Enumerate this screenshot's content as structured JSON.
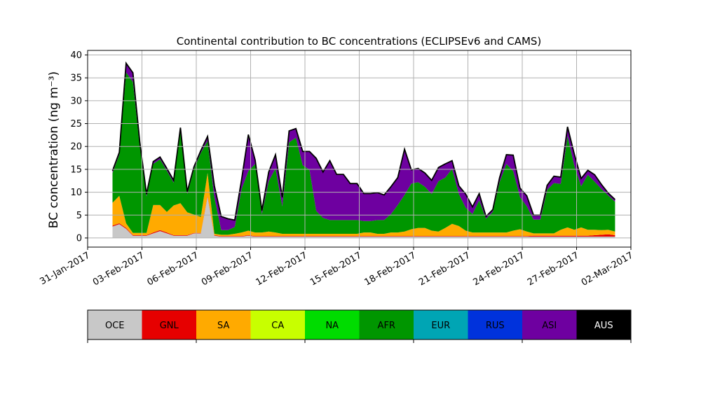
{
  "chart_data": {
    "type": "area",
    "stacked": true,
    "title": "Continental contribution to BC concentrations (ECLIPSEv6 and CAMS)",
    "ylabel": "BC concentration (ng m⁻³)",
    "ylim": [
      -2,
      41
    ],
    "yticks": [
      0,
      5,
      10,
      15,
      20,
      25,
      30,
      35,
      40
    ],
    "xlim": [
      "2017-01-31",
      "2017-03-02"
    ],
    "xticks": [
      "2017-01-31",
      "2017-02-03",
      "2017-02-06",
      "2017-02-09",
      "2017-02-12",
      "2017-02-15",
      "2017-02-18",
      "2017-02-21",
      "2017-02-24",
      "2017-02-27",
      "2017-03-02"
    ],
    "xtick_labels": [
      "31-Jan-2017",
      "03-Feb-2017",
      "06-Feb-2017",
      "09-Feb-2017",
      "12-Feb-2017",
      "15-Feb-2017",
      "18-Feb-2017",
      "21-Feb-2017",
      "24-Feb-2017",
      "27-Feb-2017",
      "02-Mar-2017"
    ],
    "grid": true,
    "legend_position": "colorbar-below",
    "x": [
      "2017-02-01 09:00",
      "2017-02-01 18:00",
      "2017-02-02 03:00",
      "2017-02-02 12:00",
      "2017-02-02 21:00",
      "2017-02-03 06:00",
      "2017-02-03 15:00",
      "2017-02-04 00:00",
      "2017-02-04 09:00",
      "2017-02-04 18:00",
      "2017-02-05 03:00",
      "2017-02-05 12:00",
      "2017-02-05 21:00",
      "2017-02-06 06:00",
      "2017-02-06 15:00",
      "2017-02-07 00:00",
      "2017-02-07 09:00",
      "2017-02-07 18:00",
      "2017-02-08 03:00",
      "2017-02-08 12:00",
      "2017-02-08 21:00",
      "2017-02-09 06:00",
      "2017-02-09 15:00",
      "2017-02-10 00:00",
      "2017-02-10 09:00",
      "2017-02-10 18:00",
      "2017-02-11 03:00",
      "2017-02-11 12:00",
      "2017-02-11 21:00",
      "2017-02-12 06:00",
      "2017-02-12 15:00",
      "2017-02-13 00:00",
      "2017-02-13 09:00",
      "2017-02-13 18:00",
      "2017-02-14 03:00",
      "2017-02-14 12:00",
      "2017-02-14 21:00",
      "2017-02-15 06:00",
      "2017-02-15 15:00",
      "2017-02-16 00:00",
      "2017-02-16 09:00",
      "2017-02-16 18:00",
      "2017-02-17 03:00",
      "2017-02-17 12:00",
      "2017-02-17 21:00",
      "2017-02-18 06:00",
      "2017-02-18 15:00",
      "2017-02-19 00:00",
      "2017-02-19 09:00",
      "2017-02-19 18:00",
      "2017-02-20 03:00",
      "2017-02-20 12:00",
      "2017-02-20 21:00",
      "2017-02-21 06:00",
      "2017-02-21 15:00",
      "2017-02-22 00:00",
      "2017-02-22 09:00",
      "2017-02-22 18:00",
      "2017-02-23 03:00",
      "2017-02-23 12:00",
      "2017-02-23 21:00",
      "2017-02-24 06:00",
      "2017-02-24 15:00",
      "2017-02-25 00:00",
      "2017-02-25 09:00",
      "2017-02-25 18:00",
      "2017-02-26 03:00",
      "2017-02-26 12:00",
      "2017-02-26 21:00",
      "2017-02-27 06:00",
      "2017-02-27 15:00",
      "2017-02-28 00:00",
      "2017-02-28 09:00",
      "2017-02-28 18:00",
      "2017-03-01 03:00"
    ],
    "series": [
      {
        "name": "OCE",
        "color": "#c8c8c8",
        "values": [
          2.5,
          3,
          2,
          0.5,
          0.5,
          0.5,
          1,
          1.5,
          1,
          0.5,
          0.5,
          0.5,
          1,
          1,
          9,
          0.5,
          0.3,
          0.3,
          0.3,
          0.3,
          0.5,
          0.3,
          0.3,
          0.3,
          0.3,
          0.3,
          0.3,
          0.3,
          0.3,
          0.3,
          0.3,
          0.3,
          0.3,
          0.3,
          0.3,
          0.3,
          0.3,
          0.3,
          0.3,
          0.3,
          0.3,
          0.3,
          0.3,
          0.3,
          0.3,
          0.3,
          0.3,
          0.3,
          0.3,
          0.3,
          0.3,
          0.3,
          0.3,
          0.3,
          0.3,
          0.3,
          0.3,
          0.3,
          0.3,
          0.3,
          0.3,
          0.3,
          0.3,
          0.3,
          0.3,
          0.3,
          0.3,
          0.3,
          0.3,
          0.3,
          0.3,
          0.3,
          0.3,
          0.3,
          0.3
        ]
      },
      {
        "name": "GNL",
        "color": "#e60000",
        "values": [
          0.2,
          0.2,
          0.2,
          0.1,
          0.1,
          0.1,
          0.2,
          0.2,
          0.2,
          0.1,
          0.1,
          0.1,
          0.1,
          0.1,
          0.2,
          0.1,
          0.1,
          0.1,
          0.1,
          0.1,
          0.1,
          0.1,
          0.1,
          0.1,
          0.1,
          0.1,
          0.1,
          0.1,
          0.1,
          0.1,
          0.1,
          0.1,
          0.1,
          0.1,
          0.1,
          0.1,
          0.1,
          0.1,
          0.1,
          0.1,
          0.1,
          0.1,
          0.1,
          0.1,
          0.1,
          0.1,
          0.1,
          0.1,
          0.1,
          0.1,
          0.1,
          0.1,
          0.1,
          0.1,
          0.1,
          0.1,
          0.1,
          0.1,
          0.1,
          0.1,
          0.1,
          0.1,
          0.2,
          0.2,
          0.2,
          0.2,
          0.2,
          0.2,
          0.2,
          0.2,
          0.2,
          0.3,
          0.4,
          0.5,
          0.3
        ]
      },
      {
        "name": "SA",
        "color": "#ffaa00",
        "values": [
          5,
          6,
          1,
          0.5,
          0.5,
          0.5,
          6,
          5.5,
          4.5,
          6.5,
          7,
          5,
          4,
          3.5,
          5,
          0.3,
          0.3,
          0.3,
          0.5,
          0.8,
          1,
          0.8,
          0.8,
          1,
          0.8,
          0.5,
          0.5,
          0.5,
          0.5,
          0.5,
          0.5,
          0.5,
          0.5,
          0.5,
          0.5,
          0.5,
          0.5,
          0.8,
          0.8,
          0.5,
          0.5,
          0.8,
          0.8,
          1,
          1.5,
          1.8,
          1.8,
          1.2,
          1,
          1.8,
          2.7,
          2.2,
          1.2,
          0.8,
          0.8,
          0.8,
          0.8,
          0.8,
          0.8,
          1.2,
          1.5,
          1,
          0.5,
          0.5,
          0.5,
          0.5,
          1.3,
          1.8,
          1.3,
          1.8,
          1.3,
          1.2,
          1,
          1,
          0.8
        ]
      },
      {
        "name": "CA",
        "color": "#c8ff00",
        "values": [
          0,
          0,
          0,
          0,
          0,
          0,
          0,
          0,
          0,
          0,
          0,
          0,
          0,
          0,
          0,
          0,
          0,
          0,
          0,
          0,
          0,
          0,
          0,
          0,
          0,
          0,
          0,
          0,
          0,
          0,
          0,
          0,
          0,
          0,
          0,
          0,
          0,
          0,
          0,
          0,
          0,
          0,
          0,
          0,
          0,
          0,
          0,
          0,
          0,
          0,
          0,
          0,
          0,
          0,
          0,
          0,
          0,
          0,
          0,
          0,
          0,
          0,
          0,
          0,
          0,
          0,
          0,
          0,
          0,
          0,
          0,
          0,
          0,
          0,
          0
        ]
      },
      {
        "name": "NA",
        "color": "#00dc00",
        "values": [
          0,
          0,
          0,
          0,
          0,
          0,
          0,
          0,
          0,
          0,
          0,
          0,
          0,
          0,
          0,
          0,
          0,
          0,
          0,
          0,
          0,
          0,
          0,
          0,
          0,
          0,
          0,
          0,
          0,
          0,
          0,
          0,
          0,
          0,
          0,
          0,
          0,
          0,
          0,
          0,
          0,
          0,
          0,
          0,
          0,
          0,
          0,
          0,
          0,
          0,
          0,
          0,
          0,
          0,
          0,
          0,
          0,
          0,
          0,
          0,
          0,
          0,
          0,
          0,
          0,
          0,
          0,
          0,
          0,
          0,
          0,
          0,
          0,
          0,
          0
        ]
      },
      {
        "name": "AFR",
        "color": "#009600",
        "values": [
          6.5,
          9,
          33,
          33,
          19,
          8,
          9,
          10,
          9,
          5,
          16,
          4,
          10,
          14,
          7,
          8,
          1,
          1,
          1.5,
          9.5,
          13,
          15,
          4,
          11,
          14,
          6,
          20,
          21,
          15,
          14,
          5,
          3.5,
          3,
          3,
          3,
          3,
          3,
          2.5,
          2.5,
          3,
          3,
          4,
          6,
          8,
          10,
          10,
          9,
          8,
          11,
          11,
          12,
          7,
          5,
          4,
          7,
          3,
          4.5,
          11,
          15,
          13,
          7,
          5.5,
          3,
          3,
          9.5,
          11,
          10,
          20,
          14,
          9,
          12,
          10.5,
          9,
          7.5,
          6.5
        ]
      },
      {
        "name": "EUR",
        "color": "#00a5b4",
        "values": [
          0,
          0,
          0,
          0,
          0,
          0,
          0,
          0,
          0,
          0,
          0,
          0,
          0,
          0,
          0,
          0,
          0,
          0,
          0,
          0,
          0,
          0,
          0,
          0,
          0,
          0,
          0,
          0,
          0,
          0,
          0,
          0,
          0,
          0,
          0,
          0,
          0,
          0,
          0,
          0,
          0,
          0,
          0,
          0,
          0,
          0,
          0,
          0,
          0,
          0,
          0,
          0,
          0,
          0,
          0,
          0,
          0,
          0,
          0,
          0,
          0,
          0,
          0,
          0,
          0,
          0,
          0,
          0,
          0,
          0,
          0,
          0,
          0,
          0,
          0
        ]
      },
      {
        "name": "RUS",
        "color": "#0032dc",
        "values": [
          0,
          0,
          0,
          0,
          0,
          0,
          0,
          0,
          0,
          0,
          0,
          0,
          0,
          0,
          0,
          0,
          0,
          0,
          0,
          0,
          0,
          0,
          0,
          0,
          0,
          0,
          0,
          0,
          0,
          0,
          0,
          0,
          0,
          0,
          0,
          0,
          0,
          0,
          0,
          0,
          0,
          0,
          0,
          0,
          0,
          0,
          0,
          0,
          0,
          0,
          0,
          0,
          0,
          0,
          0,
          0,
          0,
          0,
          0,
          0,
          0,
          0,
          0,
          0,
          0,
          0,
          0,
          0,
          0,
          0,
          0,
          0,
          0,
          0,
          0
        ]
      },
      {
        "name": "ASI",
        "color": "#6e00a0",
        "values": [
          0.5,
          0.5,
          2,
          2,
          1,
          0.5,
          0.5,
          0.5,
          0.5,
          0.5,
          0.5,
          0.5,
          0.5,
          0.5,
          1,
          2.5,
          3,
          2.5,
          1.5,
          2,
          8,
          0.8,
          0.8,
          2,
          3,
          2,
          2.5,
          2,
          3,
          4,
          11.5,
          10,
          13,
          10,
          10,
          8,
          8,
          6,
          6,
          6,
          5.5,
          6,
          6,
          10,
          3,
          3,
          3,
          3,
          3,
          3,
          1.8,
          1.8,
          3,
          1.6,
          1.5,
          0.5,
          0.5,
          1,
          2,
          3.5,
          2,
          2.3,
          1,
          1,
          1,
          1.5,
          1.5,
          2,
          2.5,
          1.7,
          1,
          1.5,
          1,
          0.5,
          0.5
        ]
      },
      {
        "name": "AUS",
        "color": "#000000",
        "values": [
          0,
          0,
          0,
          0,
          0,
          0,
          0,
          0,
          0,
          0,
          0,
          0,
          0,
          0,
          0,
          0,
          0,
          0,
          0,
          0,
          0,
          0,
          0,
          0,
          0,
          0,
          0,
          0,
          0,
          0,
          0,
          0,
          0,
          0,
          0,
          0,
          0,
          0,
          0,
          0,
          0,
          0,
          0,
          0,
          0,
          0,
          0,
          0,
          0,
          0,
          0,
          0,
          0,
          0,
          0,
          0,
          0,
          0,
          0,
          0,
          0,
          0,
          0,
          0,
          0,
          0,
          0,
          0,
          0,
          0,
          0,
          0,
          0,
          0,
          0
        ]
      }
    ],
    "colorbar": {
      "labels": [
        "OCE",
        "GNL",
        "SA",
        "CA",
        "NA",
        "AFR",
        "EUR",
        "RUS",
        "ASI",
        "AUS"
      ],
      "colors": [
        "#c8c8c8",
        "#e60000",
        "#ffaa00",
        "#c8ff00",
        "#00dc00",
        "#009600",
        "#00a5b4",
        "#0032dc",
        "#6e00a0",
        "#000000"
      ],
      "label_colors": [
        "#000000",
        "#000000",
        "#000000",
        "#000000",
        "#000000",
        "#000000",
        "#000000",
        "#000000",
        "#000000",
        "#ffffff"
      ]
    }
  }
}
